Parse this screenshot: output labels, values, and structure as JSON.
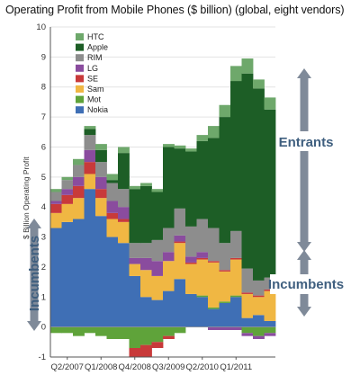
{
  "chart_data": {
    "type": "area",
    "title": "Operating Profit from Mobile Phones ($ billion) (global, eight vendors)",
    "ylabel": "$ Billion Operating Profit",
    "ylim": [
      -1,
      10
    ],
    "yticks": [
      -1,
      0,
      1,
      2,
      3,
      4,
      5,
      6,
      7,
      8,
      9,
      10
    ],
    "quarters": [
      "Q1/2007",
      "Q2/2007",
      "Q3/2007",
      "Q4/2007",
      "Q1/2008",
      "Q2/2008",
      "Q3/2008",
      "Q4/2008",
      "Q1/2009",
      "Q2/2009",
      "Q3/2009",
      "Q4/2009",
      "Q1/2010",
      "Q2/2010",
      "Q3/2010",
      "Q4/2010",
      "Q1/2011",
      "Q2/2011",
      "Q3/2011",
      "Q4/2011"
    ],
    "x_tick_labels": [
      "Q2/2007",
      "Q1/2008",
      "Q4/2008",
      "Q3/2009",
      "Q2/2010",
      "Q1/2011"
    ],
    "series": [
      {
        "name": "Nokia",
        "color": "#3f6fb5",
        "values": [
          3.3,
          3.5,
          3.6,
          4.6,
          3.7,
          3.0,
          2.8,
          1.7,
          1.0,
          0.9,
          1.2,
          1.6,
          1.1,
          1.0,
          0.6,
          0.8,
          1.0,
          0.3,
          0.4,
          0.2
        ]
      },
      {
        "name": "Mot",
        "color": "#5fa33a",
        "values": [
          -0.2,
          -0.2,
          -0.3,
          -0.2,
          -0.3,
          -0.4,
          -0.4,
          -0.7,
          -0.6,
          -0.5,
          -0.3,
          -0.2,
          0.0,
          0.05,
          0.05,
          0.05,
          0.05,
          -0.2,
          -0.3,
          -0.2
        ]
      },
      {
        "name": "Sam",
        "color": "#f0b743",
        "values": [
          0.5,
          0.6,
          0.7,
          0.5,
          0.6,
          0.6,
          0.7,
          0.4,
          0.9,
          0.8,
          1.0,
          1.2,
          1.0,
          1.2,
          1.5,
          1.0,
          1.2,
          0.8,
          0.6,
          1.0
        ]
      },
      {
        "name": "SE",
        "color": "#c83a3a",
        "values": [
          0.3,
          0.3,
          0.4,
          0.4,
          0.3,
          0.2,
          0.1,
          -0.3,
          -0.4,
          -0.2,
          -0.1,
          0.05,
          0.05,
          0.05,
          0.05,
          0.05,
          0.05,
          0.05,
          0.05,
          0.05
        ]
      },
      {
        "name": "LG",
        "color": "#8a4c9e",
        "values": [
          0.1,
          0.2,
          0.3,
          0.4,
          0.4,
          0.4,
          0.4,
          0.2,
          0.4,
          0.5,
          0.3,
          0.2,
          0.2,
          0.2,
          -0.1,
          -0.1,
          -0.1,
          -0.1,
          -0.1,
          -0.1
        ]
      },
      {
        "name": "RIM",
        "color": "#8d8d8d",
        "values": [
          0.3,
          0.3,
          0.4,
          0.5,
          0.5,
          0.6,
          0.6,
          0.5,
          0.5,
          0.7,
          0.8,
          0.9,
          1.0,
          1.1,
          1.1,
          0.9,
          0.9,
          0.8,
          0.5,
          0.4
        ]
      },
      {
        "name": "Apple",
        "color": "#1d5e26",
        "values": [
          0.0,
          0.0,
          0.0,
          0.2,
          0.4,
          0.1,
          1.2,
          1.8,
          1.9,
          1.6,
          2.7,
          2.0,
          2.5,
          2.6,
          3.0,
          4.2,
          5.0,
          6.5,
          6.4,
          5.6
        ]
      },
      {
        "name": "HTC",
        "color": "#6ea86b",
        "values": [
          0.1,
          0.1,
          0.2,
          0.1,
          0.2,
          0.2,
          0.2,
          0.1,
          0.1,
          0.1,
          0.1,
          0.1,
          0.1,
          0.2,
          0.4,
          0.4,
          0.5,
          0.5,
          0.3,
          0.4
        ]
      }
    ],
    "annotations": [
      "Entrants",
      "Incumbents",
      "Incumbents"
    ]
  }
}
